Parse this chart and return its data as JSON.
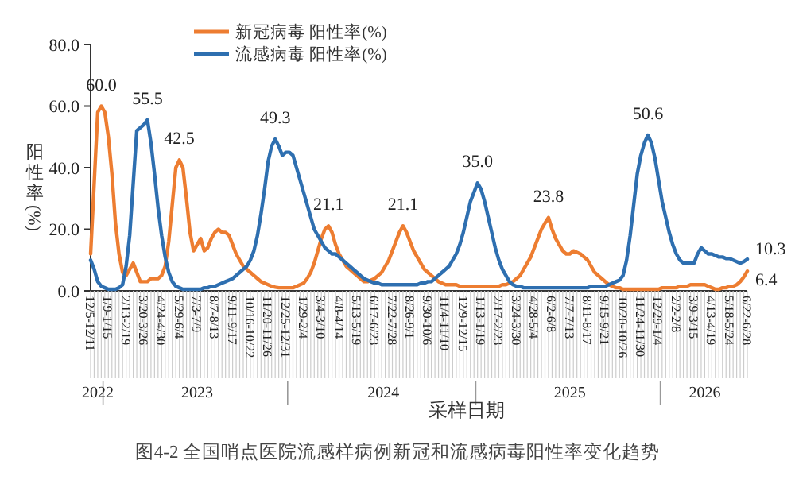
{
  "chart_data": {
    "type": "line",
    "title": "图4-2 全国哨点医院流感样病例新冠和流感病毒阳性率变化趋势",
    "xlabel": "采样日期",
    "ylabel": "阳性率(%)",
    "legend": "top",
    "annotations": [
      "2022",
      "2023",
      "2024",
      "2025",
      "2026"
    ],
    "ylim": [
      0,
      80
    ],
    "yticks": [
      {
        "value": 0,
        "label": "0.0"
      },
      {
        "value": 20,
        "label": "20.0"
      },
      {
        "value": 40,
        "label": "40.0"
      },
      {
        "value": 60,
        "label": "60.0"
      },
      {
        "value": 80,
        "label": "80.0"
      }
    ],
    "categories": [
      "12/5-12/11",
      null,
      null,
      null,
      null,
      "1/9-1/15",
      null,
      null,
      null,
      null,
      "2/13-2/19",
      null,
      null,
      null,
      null,
      "3/20-3/26",
      null,
      null,
      null,
      null,
      "4/24-4/30",
      null,
      null,
      null,
      null,
      "5/29-6/4",
      null,
      null,
      null,
      null,
      "7/3-7/9",
      null,
      null,
      null,
      null,
      "8/7-8/13",
      null,
      null,
      null,
      null,
      "9/11-9/17",
      null,
      null,
      null,
      null,
      "10/16-10/22",
      null,
      null,
      null,
      null,
      "11/20-11/26",
      null,
      null,
      null,
      null,
      "12/25-12/31",
      null,
      null,
      null,
      null,
      "1/29-2/4",
      null,
      null,
      null,
      null,
      "3/4-3/10",
      null,
      null,
      null,
      null,
      "4/8-4/14",
      null,
      null,
      null,
      null,
      "5/13-5/19",
      null,
      null,
      null,
      null,
      "6/17-6/23",
      null,
      null,
      null,
      null,
      "7/22-7/28",
      null,
      null,
      null,
      null,
      "8/26-9/1",
      null,
      null,
      null,
      null,
      "9/30-10/6",
      null,
      null,
      null,
      null,
      "11/4-11/10",
      null,
      null,
      null,
      null,
      "12/9-12/15",
      null,
      null,
      null,
      null,
      "1/13-1/19",
      null,
      null,
      null,
      null,
      "2/17-2/23",
      null,
      null,
      null,
      null,
      "3/24-3/30",
      null,
      null,
      null,
      null,
      "4/28-5/4",
      null,
      null,
      null,
      null,
      "6/2-6/8",
      null,
      null,
      null,
      null,
      "7/7-7/13",
      null,
      null,
      null,
      null,
      "8/11-8/17",
      null,
      null,
      null,
      null,
      "9/15-9/21",
      null,
      null,
      null,
      null,
      "10/20-10/26",
      null,
      null,
      null,
      null,
      "11/24-11/30",
      null,
      null,
      null,
      null,
      "12/29-1/4",
      null,
      null,
      null,
      null,
      "2/2-2/8",
      null,
      null,
      null,
      null,
      "3/9-3/15",
      null,
      null,
      null,
      null,
      "4/13-4/19",
      null,
      null,
      null,
      null,
      "5/18-5/24",
      null,
      null,
      null,
      null,
      "6/22-6/28"
    ],
    "series": [
      {
        "name": "新冠病毒 阳性率(%)",
        "color": "#ed7d31",
        "values": [
          12,
          35,
          58,
          60,
          58,
          50,
          38,
          22,
          12,
          6,
          5,
          7,
          9,
          6,
          3,
          3,
          3,
          4,
          4,
          4,
          5,
          8,
          16,
          28,
          40,
          42.5,
          40,
          30,
          19,
          13,
          15,
          17,
          13,
          14,
          17,
          19,
          20,
          19,
          19,
          18,
          15,
          12,
          10,
          8,
          7,
          6,
          5,
          4,
          3,
          2.5,
          2,
          1.5,
          1.2,
          1,
          1,
          1,
          1,
          1,
          1.5,
          2,
          2.5,
          4,
          6,
          9,
          13,
          17,
          20,
          21.1,
          19,
          15,
          12,
          10,
          8,
          7,
          6,
          5,
          4,
          3,
          3,
          3.5,
          4,
          5,
          6,
          8,
          10,
          13,
          16,
          19,
          21.1,
          19,
          16,
          13,
          11,
          9,
          7,
          6,
          5,
          4,
          3,
          2.5,
          2,
          2,
          2,
          2,
          1.5,
          1.5,
          1.5,
          1.5,
          1.5,
          1.5,
          1.5,
          1.5,
          1.5,
          1.5,
          1.5,
          1.5,
          2,
          2,
          2.5,
          3,
          4,
          5,
          7,
          9,
          11,
          14,
          17,
          20,
          22,
          23.8,
          20,
          17,
          15,
          13,
          12,
          12,
          13,
          12.5,
          12,
          11,
          10,
          8,
          6,
          5,
          4,
          3,
          2,
          1.5,
          1,
          1,
          0.5,
          0.5,
          0.5,
          0.5,
          0.5,
          0.5,
          0.5,
          0.5,
          0.5,
          0.5,
          0.5,
          1,
          1,
          1,
          1,
          1,
          1.5,
          1.5,
          1.5,
          2,
          2,
          2,
          2,
          2,
          1.5,
          1,
          0.5,
          0.5,
          1,
          1,
          1.5,
          1.5,
          2,
          3,
          4.5,
          6.4
        ],
        "value_labels": [
          null,
          null,
          null,
          "60.0",
          null,
          null,
          null,
          null,
          null,
          null,
          null,
          null,
          null,
          null,
          null,
          null,
          null,
          null,
          null,
          null,
          null,
          null,
          null,
          null,
          null,
          "42.5",
          null,
          null,
          null,
          null,
          null,
          null,
          null,
          null,
          null,
          null,
          null,
          null,
          null,
          null,
          null,
          null,
          null,
          null,
          null,
          null,
          null,
          null,
          null,
          null,
          null,
          null,
          null,
          null,
          null,
          null,
          null,
          null,
          null,
          null,
          null,
          null,
          null,
          null,
          null,
          null,
          null,
          "21.1",
          null,
          null,
          null,
          null,
          null,
          null,
          null,
          null,
          null,
          null,
          null,
          null,
          null,
          null,
          null,
          null,
          null,
          null,
          null,
          null,
          "21.1",
          null,
          null,
          null,
          null,
          null,
          null,
          null,
          null,
          null,
          null,
          null,
          null,
          null,
          null,
          null,
          null,
          null,
          null,
          null,
          null,
          null,
          null,
          null,
          null,
          null,
          null,
          null,
          null,
          null,
          null,
          null,
          null,
          null,
          null,
          null,
          null,
          null,
          null,
          null,
          null,
          "23.8",
          null,
          null,
          null,
          null,
          null,
          null,
          null,
          null,
          null,
          null,
          null,
          null,
          null,
          null,
          null,
          null,
          null,
          null,
          null,
          null,
          null,
          null,
          null,
          null,
          null,
          null,
          null,
          null,
          null,
          null,
          null,
          null,
          null,
          null,
          null,
          null,
          null,
          null,
          null,
          null,
          null,
          null,
          null,
          null,
          null,
          null,
          null,
          null,
          null,
          null,
          null,
          null,
          null,
          null,
          null,
          "6.4"
        ]
      },
      {
        "name": "流感病毒 阳性率(%)",
        "color": "#2e6fb0",
        "values": [
          10,
          7,
          3,
          1.5,
          1,
          0.5,
          0.5,
          0.5,
          1,
          2,
          8,
          18,
          35,
          52,
          53,
          54,
          55.5,
          48,
          38,
          27,
          18,
          11,
          6,
          3,
          1.5,
          1,
          0.5,
          0.5,
          0.5,
          0.5,
          0.5,
          0.5,
          1,
          1,
          1.5,
          1.5,
          2,
          2.5,
          3,
          3.5,
          4,
          5,
          6,
          7,
          8,
          10,
          13,
          18,
          25,
          33,
          42,
          47,
          49.3,
          47,
          44,
          45,
          45,
          44,
          40,
          36,
          32,
          28,
          24,
          20,
          18,
          16,
          14,
          13,
          12,
          12,
          11,
          10,
          9,
          8,
          7,
          6,
          5,
          4,
          3.5,
          3,
          2.5,
          2.5,
          2,
          2,
          2,
          2,
          2,
          2,
          2,
          2,
          2,
          2,
          2,
          2.5,
          2.5,
          3,
          3,
          4,
          5,
          6,
          7,
          8,
          10,
          12,
          15,
          19,
          24,
          29,
          32,
          35,
          33,
          29,
          24,
          19,
          14,
          10,
          7,
          5,
          3,
          2,
          1.5,
          1.5,
          1,
          1,
          1,
          1,
          1,
          1,
          1,
          1,
          1,
          1,
          1,
          1,
          1,
          1,
          1,
          1,
          1,
          1,
          1,
          1.5,
          1.5,
          1.5,
          1.5,
          1.5,
          2,
          2.5,
          3,
          3.5,
          5,
          10,
          18,
          28,
          38,
          44,
          48,
          50.6,
          48,
          43,
          36,
          29,
          24,
          19,
          15,
          12,
          10,
          9,
          9,
          9,
          9,
          12,
          14,
          13,
          12,
          12,
          11.5,
          11,
          11,
          10.5,
          10.5,
          10,
          9.5,
          9,
          9.5,
          10.3
        ],
        "value_labels": [
          null,
          null,
          null,
          null,
          null,
          null,
          null,
          null,
          null,
          null,
          null,
          null,
          null,
          null,
          null,
          null,
          "55.5",
          null,
          null,
          null,
          null,
          null,
          null,
          null,
          null,
          null,
          null,
          null,
          null,
          null,
          null,
          null,
          null,
          null,
          null,
          null,
          null,
          null,
          null,
          null,
          null,
          null,
          null,
          null,
          null,
          null,
          null,
          null,
          null,
          null,
          null,
          null,
          "49.3",
          null,
          null,
          null,
          null,
          null,
          null,
          null,
          null,
          null,
          null,
          null,
          null,
          null,
          null,
          null,
          null,
          null,
          null,
          null,
          null,
          null,
          null,
          null,
          null,
          null,
          null,
          null,
          null,
          null,
          null,
          null,
          null,
          null,
          null,
          null,
          null,
          null,
          null,
          null,
          null,
          null,
          null,
          null,
          null,
          null,
          null,
          null,
          null,
          null,
          null,
          null,
          null,
          null,
          null,
          null,
          null,
          "35.0",
          null,
          null,
          null,
          null,
          null,
          null,
          null,
          null,
          null,
          null,
          null,
          null,
          null,
          null,
          null,
          null,
          null,
          null,
          null,
          null,
          null,
          null,
          null,
          null,
          null,
          null,
          null,
          null,
          null,
          null,
          null,
          null,
          null,
          null,
          null,
          null,
          null,
          null,
          null,
          null,
          null,
          null,
          null,
          null,
          null,
          null,
          null,
          "50.6",
          null,
          null,
          null,
          null,
          null,
          null,
          null,
          null,
          null,
          null,
          null,
          null,
          null,
          null,
          null,
          null,
          null,
          null,
          null,
          null,
          null,
          null,
          null,
          null,
          null,
          null,
          null,
          "10.3"
        ]
      }
    ]
  }
}
